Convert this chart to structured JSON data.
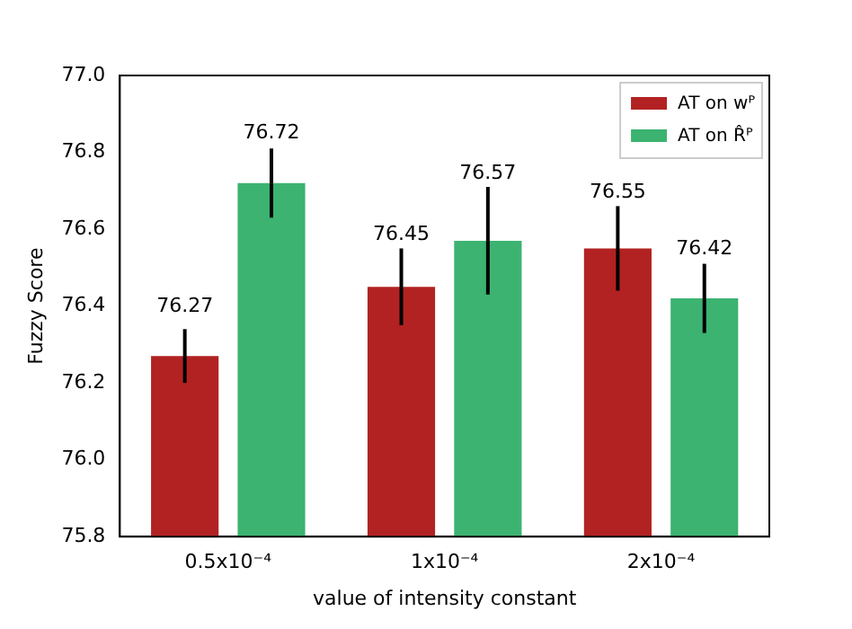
{
  "chart_data": {
    "type": "bar",
    "xlabel": "value of intensity constant",
    "ylabel": "Fuzzy Score",
    "categories": [
      "0.5x10⁻⁴",
      "1x10⁻⁴",
      "2x10⁻⁴"
    ],
    "series": [
      {
        "name": "AT on wᴾ",
        "color": "#b22222",
        "values": [
          76.27,
          76.45,
          76.55
        ],
        "errors": [
          0.07,
          0.1,
          0.11
        ]
      },
      {
        "name": "AT on R̂ᴾ",
        "color": "#3cb371",
        "values": [
          76.72,
          76.57,
          76.42
        ],
        "errors": [
          0.09,
          0.14,
          0.09
        ]
      }
    ],
    "ylim": [
      75.8,
      77.0
    ],
    "yticks": [
      {
        "value": 75.8,
        "label": "75.8"
      },
      {
        "value": 76.0,
        "label": "76.0"
      },
      {
        "value": 76.2,
        "label": "76.2"
      },
      {
        "value": 76.4,
        "label": "76.4"
      },
      {
        "value": 76.6,
        "label": "76.6"
      },
      {
        "value": 76.8,
        "label": "76.8"
      },
      {
        "value": 77.0,
        "label": "77.0"
      }
    ],
    "data_labels": true,
    "legend": "top right",
    "grid": false
  }
}
